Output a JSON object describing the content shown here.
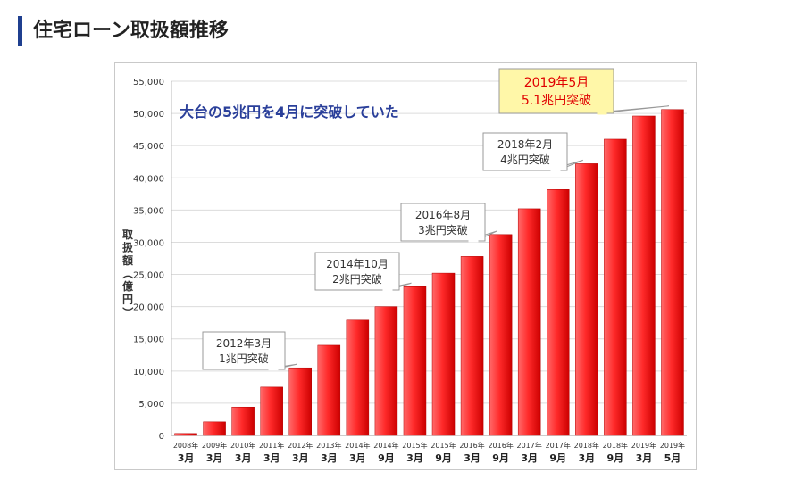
{
  "page": {
    "title": "住宅ローン取扱額推移"
  },
  "chart_data": {
    "type": "bar",
    "categories": [
      {
        "year": "2008年",
        "month": "3月"
      },
      {
        "year": "2009年",
        "month": "3月"
      },
      {
        "year": "2010年",
        "month": "3月"
      },
      {
        "year": "2011年",
        "month": "3月"
      },
      {
        "year": "2012年",
        "month": "3月"
      },
      {
        "year": "2013年",
        "month": "3月"
      },
      {
        "year": "2014年",
        "month": "3月"
      },
      {
        "year": "2014年",
        "month": "9月"
      },
      {
        "year": "2015年",
        "month": "3月"
      },
      {
        "year": "2015年",
        "month": "9月"
      },
      {
        "year": "2016年",
        "month": "3月"
      },
      {
        "year": "2016年",
        "month": "9月"
      },
      {
        "year": "2017年",
        "month": "3月"
      },
      {
        "year": "2017年",
        "month": "9月"
      },
      {
        "year": "2018年",
        "month": "3月"
      },
      {
        "year": "2018年",
        "month": "9月"
      },
      {
        "year": "2019年",
        "month": "3月"
      },
      {
        "year": "2019年",
        "month": "5月"
      }
    ],
    "values": [
      300,
      2100,
      4400,
      7500,
      10500,
      14000,
      17900,
      20000,
      23100,
      25200,
      27800,
      31200,
      35200,
      38200,
      42200,
      46000,
      49600,
      50600
    ],
    "ylim": [
      0,
      55000
    ],
    "yticks": [
      "0",
      "5,000",
      "10,000",
      "15,000",
      "20,000",
      "25,000",
      "30,000",
      "35,000",
      "40,000",
      "45,000",
      "50,000",
      "55,000"
    ],
    "ylabel": "取扱額（億円）",
    "headline": "大台の5兆円を4月に突破していた",
    "annotations": [
      {
        "bar": 4,
        "line1": "2012年3月",
        "line2": "1兆円突破",
        "highlight": false
      },
      {
        "bar": 8,
        "line1": "2014年10月",
        "line2": "2兆円突破",
        "highlight": false
      },
      {
        "bar": 11,
        "line1": "2016年8月",
        "line2": "3兆円突破",
        "highlight": false
      },
      {
        "bar": 14,
        "line1": "2018年2月",
        "line2": "4兆円突破",
        "highlight": false
      },
      {
        "bar": 17,
        "line1": "2019年5月",
        "line2": "5.1兆円突破",
        "highlight": true
      }
    ],
    "colors": {
      "bar_light": "#ff6a6a",
      "bar_dark": "#cc0000",
      "headline": "#2a3f9a",
      "highlight_fill": "#fff7a8",
      "highlight_text": "#e00000"
    }
  }
}
